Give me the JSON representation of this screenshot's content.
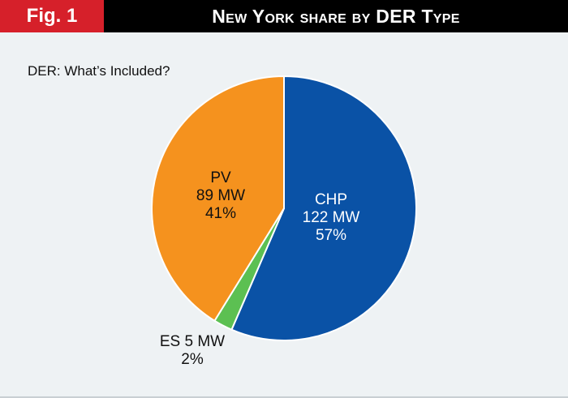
{
  "header": {
    "fig_label": "Fig. 1",
    "title": "New York share by DER Type"
  },
  "subtitle": "DER: What’s Included?",
  "chart_data": {
    "type": "pie",
    "title": "New York share by DER Type",
    "subtitle": "DER: What’s Included?",
    "slices": [
      {
        "name": "CHP",
        "value_mw": 122,
        "mw_label": "122 MW",
        "percent": 57,
        "percent_label": "57%",
        "color": "#0a52a6",
        "text_color": "#ffffff"
      },
      {
        "name": "ES",
        "value_mw": 5,
        "mw_label": "5 MW",
        "percent": 2,
        "percent_label": "2%",
        "color": "#5cc052",
        "text_color": "#111111"
      },
      {
        "name": "PV",
        "value_mw": 89,
        "mw_label": "89 MW",
        "percent": 41,
        "percent_label": "41%",
        "color": "#f5921e",
        "text_color": "#111111"
      }
    ],
    "start_angle_deg": 0,
    "direction": "clockwise"
  },
  "colors": {
    "header_bg": "#000000",
    "fig_tag_bg": "#d6202a",
    "panel_bg": "#eef2f4"
  }
}
